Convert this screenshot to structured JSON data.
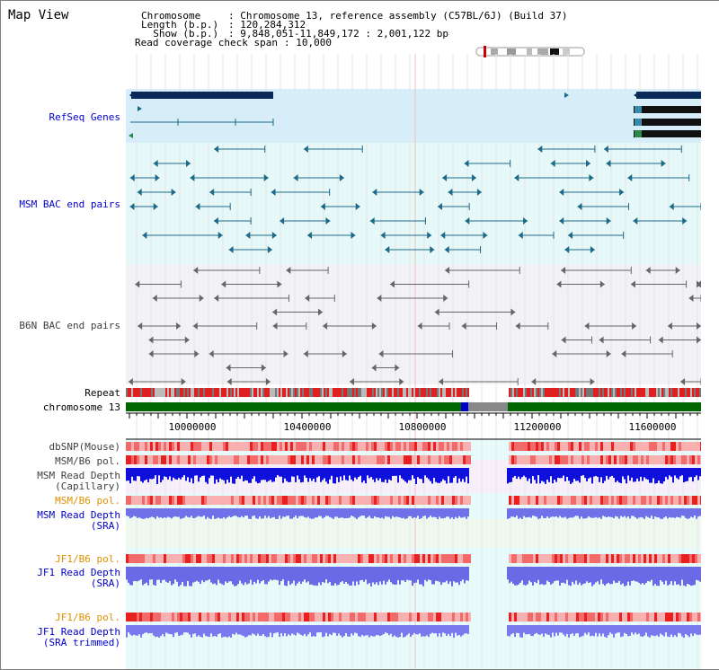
{
  "title": "Map View",
  "info": {
    "chromosome_label": "Chromosome",
    "chromosome_value": ": Chromosome 13, reference assembly (C57BL/6J) (Build 37)",
    "length_label": "Length (b.p.)",
    "length_value": ": 120,284,312",
    "show_label": "  Show (b.p.)",
    "show_value": ": 9,848,051-11,849,172 : 2,001,122 bp",
    "coverage_label": "Read coverage check span",
    "coverage_value": ": 10,000"
  },
  "tracks": {
    "refseq": "RefSeq Genes",
    "msm_bac": "MSM BAC end pairs",
    "b6n_bac": "B6N BAC end pairs",
    "repeat": "Repeat",
    "chromosome": "chromosome 13",
    "dbsnp": "dbSNP(Mouse)",
    "msm_b6_pol1": "MSM/B6 pol.",
    "msm_read_depth_cap1": "MSM Read Depth",
    "msm_read_depth_cap2": "(Capillary)",
    "msm_b6_pol2": "MSM/B6 pol.",
    "msm_read_depth_sra1": "MSM Read Depth",
    "msm_read_depth_sra2": "(SRA)",
    "jf1_b6_pol1": "JF1/B6 pol.",
    "jf1_read_depth1": "JF1 Read Depth",
    "jf1_read_depth2": "(SRA)",
    "jf1_b6_pol2": "JF1/B6 pol.",
    "jf1_read_depth_trim1": "JF1 Read Depth",
    "jf1_read_depth_trim2": "(SRA trimmed)"
  },
  "axis": {
    "ticks": [
      "10000000",
      "10400000",
      "10800000",
      "11200000",
      "11600000"
    ]
  },
  "colors": {
    "refseq_bg": "#d6eefa",
    "msm_bg": "#e6f8f8",
    "b6n_bg": "#f2f2f6",
    "chrom_green": "#006600",
    "depth_blue": "#0000dd",
    "depth_light": "#7777ee",
    "snp_red": "#ee3333"
  }
}
